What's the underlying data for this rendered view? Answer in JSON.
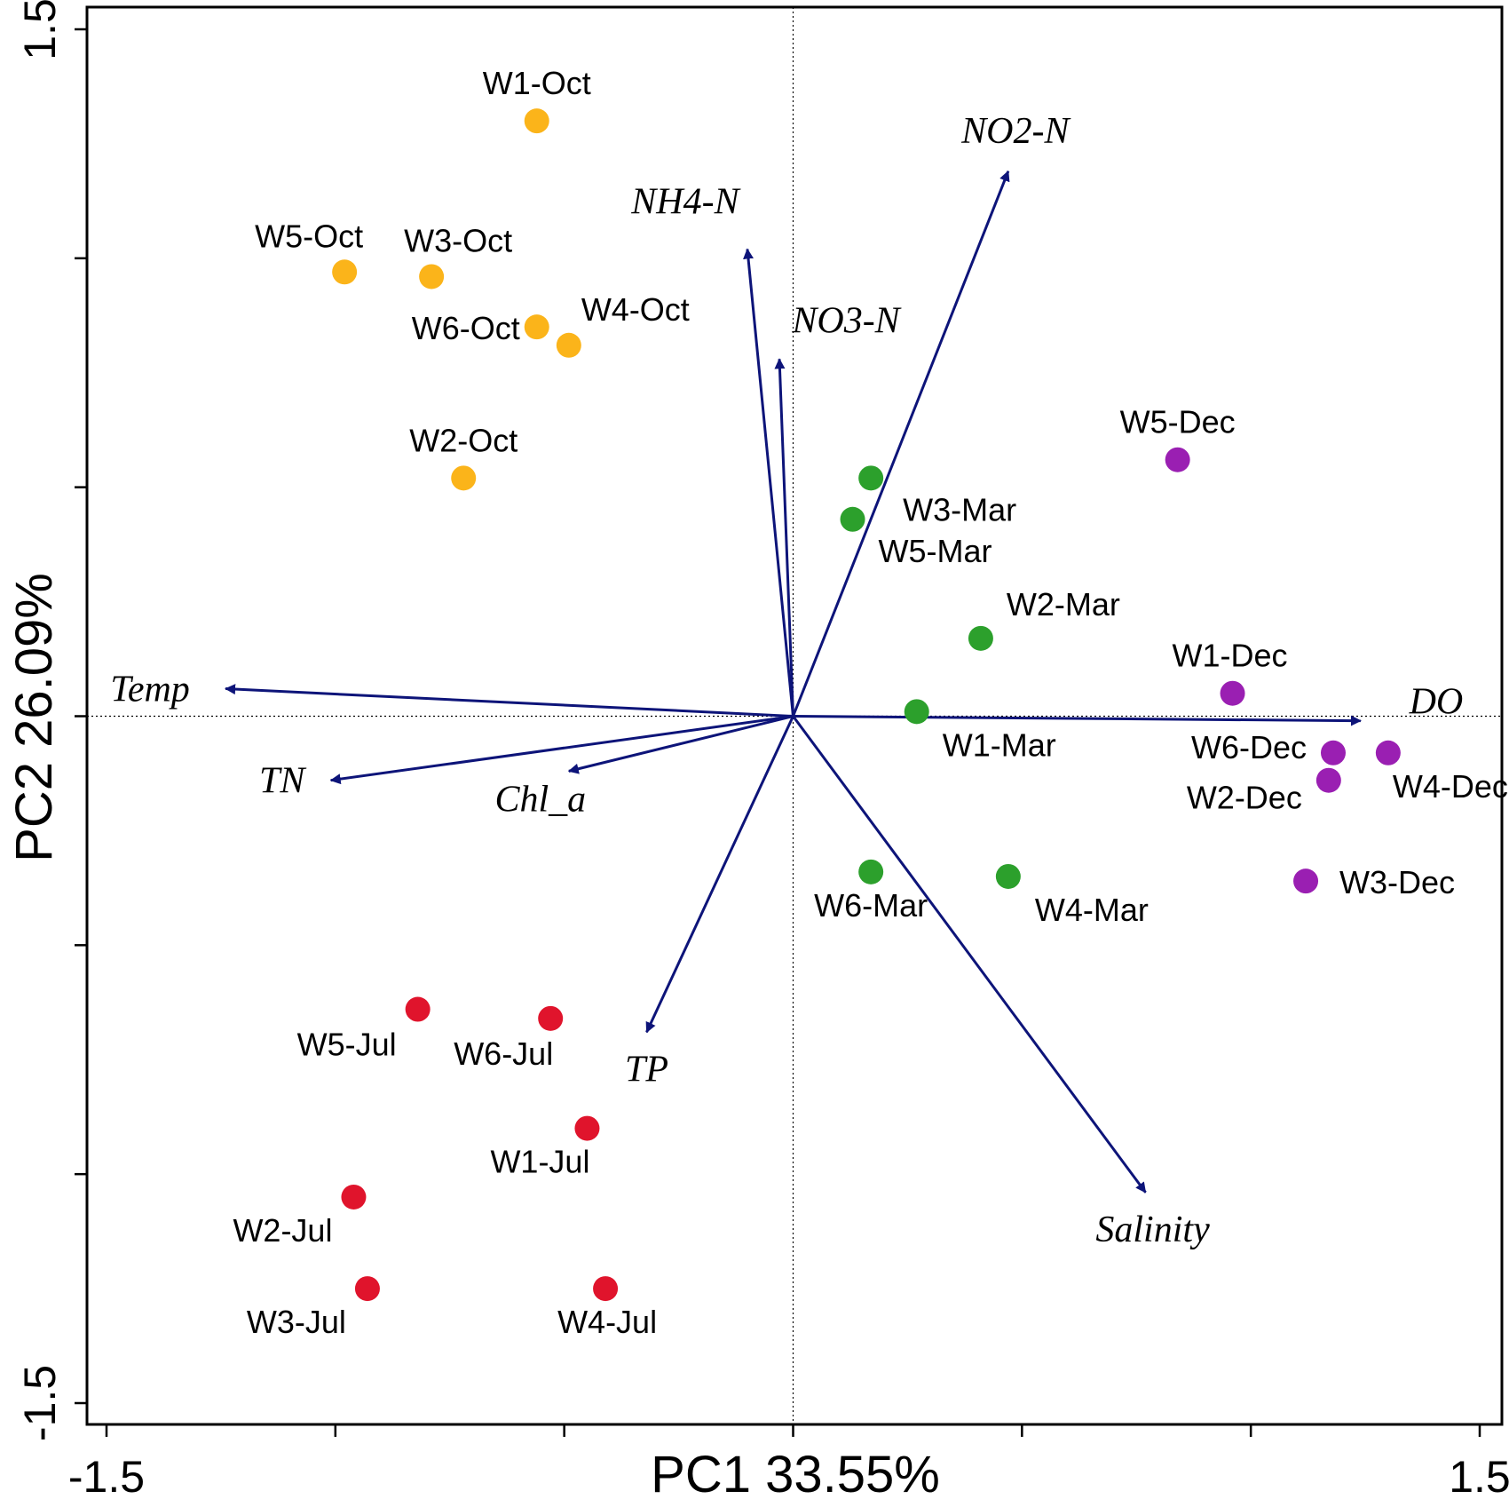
{
  "chart_data": {
    "type": "scatter",
    "subtype": "pca-biplot",
    "xlabel": "PC1 33.55%",
    "ylabel": "PC2 26.09%",
    "xlim": [
      -1.5,
      1.5
    ],
    "ylim": [
      -1.5,
      1.5
    ],
    "x_tick_labels": [
      "-1.5",
      "1.5"
    ],
    "y_tick_labels": [
      "1.5",
      "-1.5"
    ],
    "x_ticks": [
      -1.5,
      -1.0,
      -0.5,
      0.0,
      0.5,
      1.0,
      1.5
    ],
    "y_ticks": [
      -1.5,
      -1.0,
      -0.5,
      0.0,
      0.5,
      1.0,
      1.5
    ],
    "reference_lines": {
      "x": 0,
      "y": 0,
      "style": "dotted"
    },
    "grid": false,
    "series": [
      {
        "color": "#FBB41A",
        "points": [
          {
            "label": "W1-Oct",
            "x": -0.56,
            "y": 1.3
          },
          {
            "label": "W5-Oct",
            "x": -0.98,
            "y": 0.97
          },
          {
            "label": "W3-Oct",
            "x": -0.79,
            "y": 0.96
          },
          {
            "label": "W6-Oct",
            "x": -0.56,
            "y": 0.85
          },
          {
            "label": "W4-Oct",
            "x": -0.49,
            "y": 0.81
          },
          {
            "label": "W2-Oct",
            "x": -0.72,
            "y": 0.52
          }
        ]
      },
      {
        "color": "#2CA02C",
        "points": [
          {
            "label": "W3-Mar",
            "x": 0.17,
            "y": 0.52
          },
          {
            "label": "W5-Mar",
            "x": 0.13,
            "y": 0.43
          },
          {
            "label": "W2-Mar",
            "x": 0.41,
            "y": 0.17
          },
          {
            "label": "W1-Mar",
            "x": 0.27,
            "y": 0.01
          },
          {
            "label": "W6-Mar",
            "x": 0.17,
            "y": -0.34
          },
          {
            "label": "W4-Mar",
            "x": 0.47,
            "y": -0.35
          }
        ]
      },
      {
        "color": "#9A1FB2",
        "points": [
          {
            "label": "W5-Dec",
            "x": 0.84,
            "y": 0.56
          },
          {
            "label": "W1-Dec",
            "x": 0.96,
            "y": 0.05
          },
          {
            "label": "W6-Dec",
            "x": 1.18,
            "y": -0.08
          },
          {
            "label": "W4-Dec",
            "x": 1.3,
            "y": -0.08
          },
          {
            "label": "W2-Dec",
            "x": 1.17,
            "y": -0.14
          },
          {
            "label": "W3-Dec",
            "x": 1.12,
            "y": -0.36
          }
        ]
      },
      {
        "color": "#E0142C",
        "points": [
          {
            "label": "W5-Jul",
            "x": -0.82,
            "y": -0.64
          },
          {
            "label": "W6-Jul",
            "x": -0.53,
            "y": -0.66
          },
          {
            "label": "W1-Jul",
            "x": -0.45,
            "y": -0.9
          },
          {
            "label": "W2-Jul",
            "x": -0.96,
            "y": -1.05
          },
          {
            "label": "W3-Jul",
            "x": -0.93,
            "y": -1.25
          },
          {
            "label": "W4-Jul",
            "x": -0.41,
            "y": -1.25
          }
        ]
      }
    ],
    "vectors": [
      {
        "label": "NO2-N",
        "x": 0.47,
        "y": 1.19
      },
      {
        "label": "NH4-N",
        "x": -0.1,
        "y": 1.02
      },
      {
        "label": "NO3-N",
        "x": -0.03,
        "y": 0.78
      },
      {
        "label": "Temp",
        "x": -1.24,
        "y": 0.06
      },
      {
        "label": "TN",
        "x": -1.01,
        "y": -0.14
      },
      {
        "label": "Chl_a",
        "x": -0.49,
        "y": -0.12
      },
      {
        "label": "TP",
        "x": -0.32,
        "y": -0.69
      },
      {
        "label": "DO",
        "x": 1.24,
        "y": -0.01
      },
      {
        "label": "Salinity",
        "x": 0.77,
        "y": -1.04
      }
    ],
    "vector_color": "#0D1479"
  }
}
